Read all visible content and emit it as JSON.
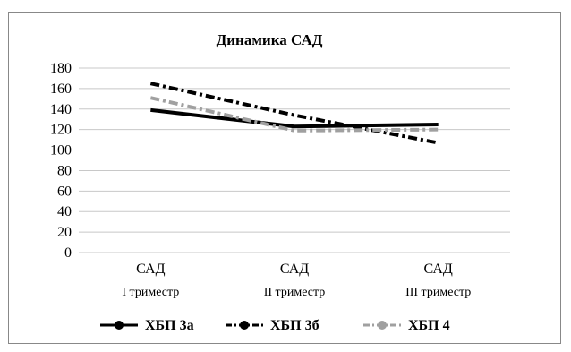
{
  "chart_data": {
    "type": "line",
    "title": "Динамика САД",
    "categories": [
      [
        "САД",
        "I триместр"
      ],
      [
        "САД",
        "II триместр"
      ],
      [
        "САД",
        "III триместр"
      ]
    ],
    "y_ticks": [
      "0",
      "20",
      "40",
      "60",
      "80",
      "100",
      "120",
      "140",
      "160",
      "180"
    ],
    "ylim": [
      0,
      180
    ],
    "grid": true,
    "legend_position": "bottom",
    "series": [
      {
        "name": "ХБП 3а",
        "values": [
          139,
          123,
          125
        ],
        "color": "#000000",
        "style": "solid"
      },
      {
        "name": "ХБП 3б",
        "values": [
          165,
          134,
          107
        ],
        "color": "#000000",
        "style": "dashdot"
      },
      {
        "name": "ХБП 4",
        "values": [
          151,
          119,
          120
        ],
        "color": "#a0a0a0",
        "style": "dashdot"
      }
    ]
  }
}
